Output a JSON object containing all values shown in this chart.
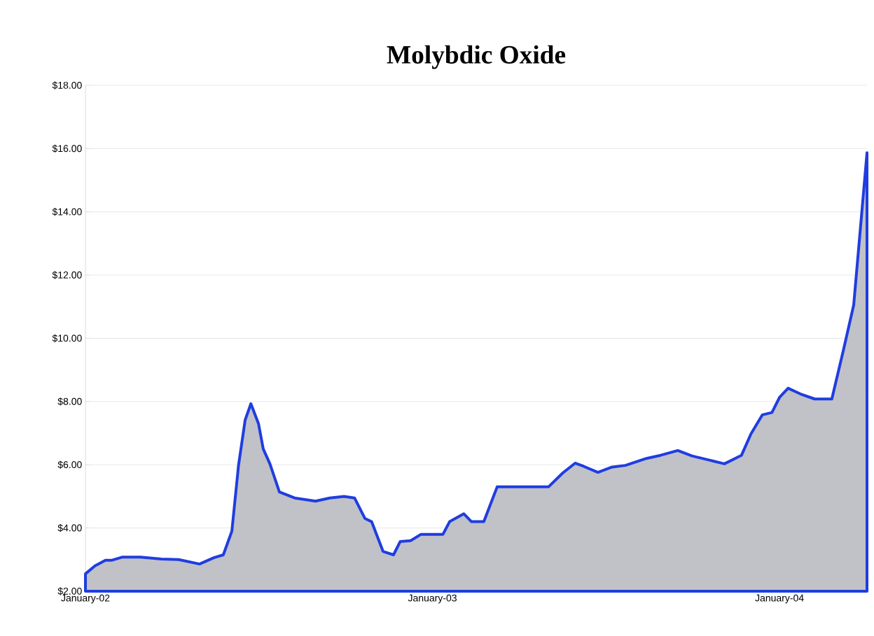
{
  "chart_data": {
    "type": "area",
    "title": "Molybdic Oxide",
    "x": [
      "2002-01-01",
      "2002-01-11",
      "2002-01-22",
      "2002-01-29",
      "2002-02-09",
      "2002-02-28",
      "2002-03-22",
      "2002-04-09",
      "2002-05-01",
      "2002-05-16",
      "2002-05-26",
      "2002-06-04",
      "2002-06-11",
      "2002-06-18",
      "2002-06-24",
      "2002-07-02",
      "2002-07-07",
      "2002-07-14",
      "2002-07-24",
      "2002-08-09",
      "2002-08-31",
      "2002-09-15",
      "2002-09-30",
      "2002-10-11",
      "2002-10-22",
      "2002-10-29",
      "2002-11-10",
      "2002-11-21",
      "2002-11-28",
      "2002-12-09",
      "2002-12-20",
      "2003-01-12",
      "2003-01-19",
      "2003-02-03",
      "2003-02-11",
      "2003-02-24",
      "2003-03-10",
      "2003-05-03",
      "2003-05-18",
      "2003-05-31",
      "2003-06-09",
      "2003-06-24",
      "2003-07-08",
      "2003-07-23",
      "2003-08-14",
      "2003-08-29",
      "2003-09-16",
      "2003-10-01",
      "2003-10-20",
      "2003-11-04",
      "2003-11-22",
      "2003-12-02",
      "2003-12-14",
      "2003-12-24",
      "2004-01-01",
      "2004-01-10",
      "2004-01-23",
      "2004-02-07",
      "2004-02-25",
      "2004-03-08",
      "2004-03-19",
      "2004-04-02"
    ],
    "series": [
      {
        "color": "#1f3de0",
        "values": [
          2.55,
          2.8,
          2.98,
          2.98,
          3.08,
          3.08,
          3.02,
          3.0,
          2.86,
          3.06,
          3.15,
          3.9,
          5.98,
          7.42,
          7.93,
          7.3,
          6.5,
          6.03,
          5.14,
          4.95,
          4.85,
          4.95,
          5.0,
          4.95,
          4.3,
          4.2,
          3.26,
          3.15,
          3.57,
          3.6,
          3.8,
          3.8,
          4.2,
          4.45,
          4.2,
          4.2,
          5.3,
          5.3,
          5.74,
          6.05,
          5.95,
          5.76,
          5.92,
          5.98,
          6.2,
          6.3,
          6.45,
          6.28,
          6.14,
          6.03,
          6.3,
          6.98,
          7.58,
          7.65,
          8.13,
          8.42,
          8.24,
          8.08,
          8.08,
          9.6,
          11.05,
          15.87
        ]
      }
    ],
    "xlim": [
      "2002-01-01",
      "2004-04-02"
    ],
    "xticks": [
      {
        "value": "2002-01-01",
        "label": "January-02"
      },
      {
        "value": "2003-01-01",
        "label": "January-03"
      },
      {
        "value": "2004-01-01",
        "label": "January-04"
      }
    ],
    "ylim": [
      2,
      18
    ],
    "yticks": [
      {
        "value": 2,
        "label": "$2.00"
      },
      {
        "value": 4,
        "label": "$4.00"
      },
      {
        "value": 6,
        "label": "$6.00"
      },
      {
        "value": 8,
        "label": "$8.00"
      },
      {
        "value": 10,
        "label": "$10.00"
      },
      {
        "value": 12,
        "label": "$12.00"
      },
      {
        "value": 14,
        "label": "$14.00"
      },
      {
        "value": 16,
        "label": "$16.00"
      },
      {
        "value": 18,
        "label": "$18.00"
      }
    ],
    "grid": "y"
  }
}
